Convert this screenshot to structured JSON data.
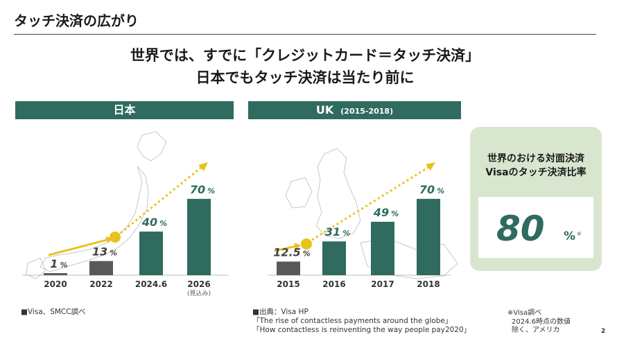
{
  "title": "タッチ決済の広がり",
  "headline": {
    "line1": "世界では、すでに「クレジットカード＝タッチ決済」",
    "line2": "日本でもタッチ決済は当たり前に"
  },
  "japan_panel": {
    "banner": "日本",
    "source": "■Visa、SMCC調べ"
  },
  "uk_panel": {
    "banner": "UK",
    "banner_sub": "(2015-2018)",
    "source_lines": [
      "■出典：Visa HP",
      "「The rise of contactless payments around the globe」",
      "「How contactless is reinventing the way people pay2020」"
    ]
  },
  "stat": {
    "label_line1": "世界のおける対面決済",
    "label_line2": "Visaのタッチ決済比率",
    "value": "80",
    "unit": "%",
    "mark": "※"
  },
  "note_lines": [
    "※Visa調べ",
    "2024.6時点の数値",
    "除く、アメリカ"
  ],
  "page_number": "2",
  "colors": {
    "bar_dark": "#2f6b5e",
    "bar_gray": "#595959",
    "arrow": "#e8c21c",
    "stat_bg": "#d9e6cf"
  },
  "chart_data": [
    {
      "type": "bar",
      "categories": [
        "2020",
        "2022",
        "2024.6",
        "2026"
      ],
      "category_subtitles": [
        "",
        "",
        "",
        "(見込み)"
      ],
      "values": [
        1,
        13,
        40,
        70
      ],
      "value_labels": [
        "1",
        "13",
        "40",
        "70"
      ],
      "unit": "%",
      "bar_colors": [
        "#595959",
        "#595959",
        "#2f6b5e",
        "#2f6b5e"
      ],
      "ylim": [
        0,
        75
      ]
    },
    {
      "type": "bar",
      "categories": [
        "2015",
        "2016",
        "2017",
        "2018"
      ],
      "values": [
        12.5,
        31,
        49,
        70
      ],
      "value_labels": [
        "12.5",
        "31",
        "49",
        "70"
      ],
      "unit": "%",
      "bar_colors": [
        "#595959",
        "#2f6b5e",
        "#2f6b5e",
        "#2f6b5e"
      ],
      "ylim": [
        0,
        75
      ]
    }
  ]
}
